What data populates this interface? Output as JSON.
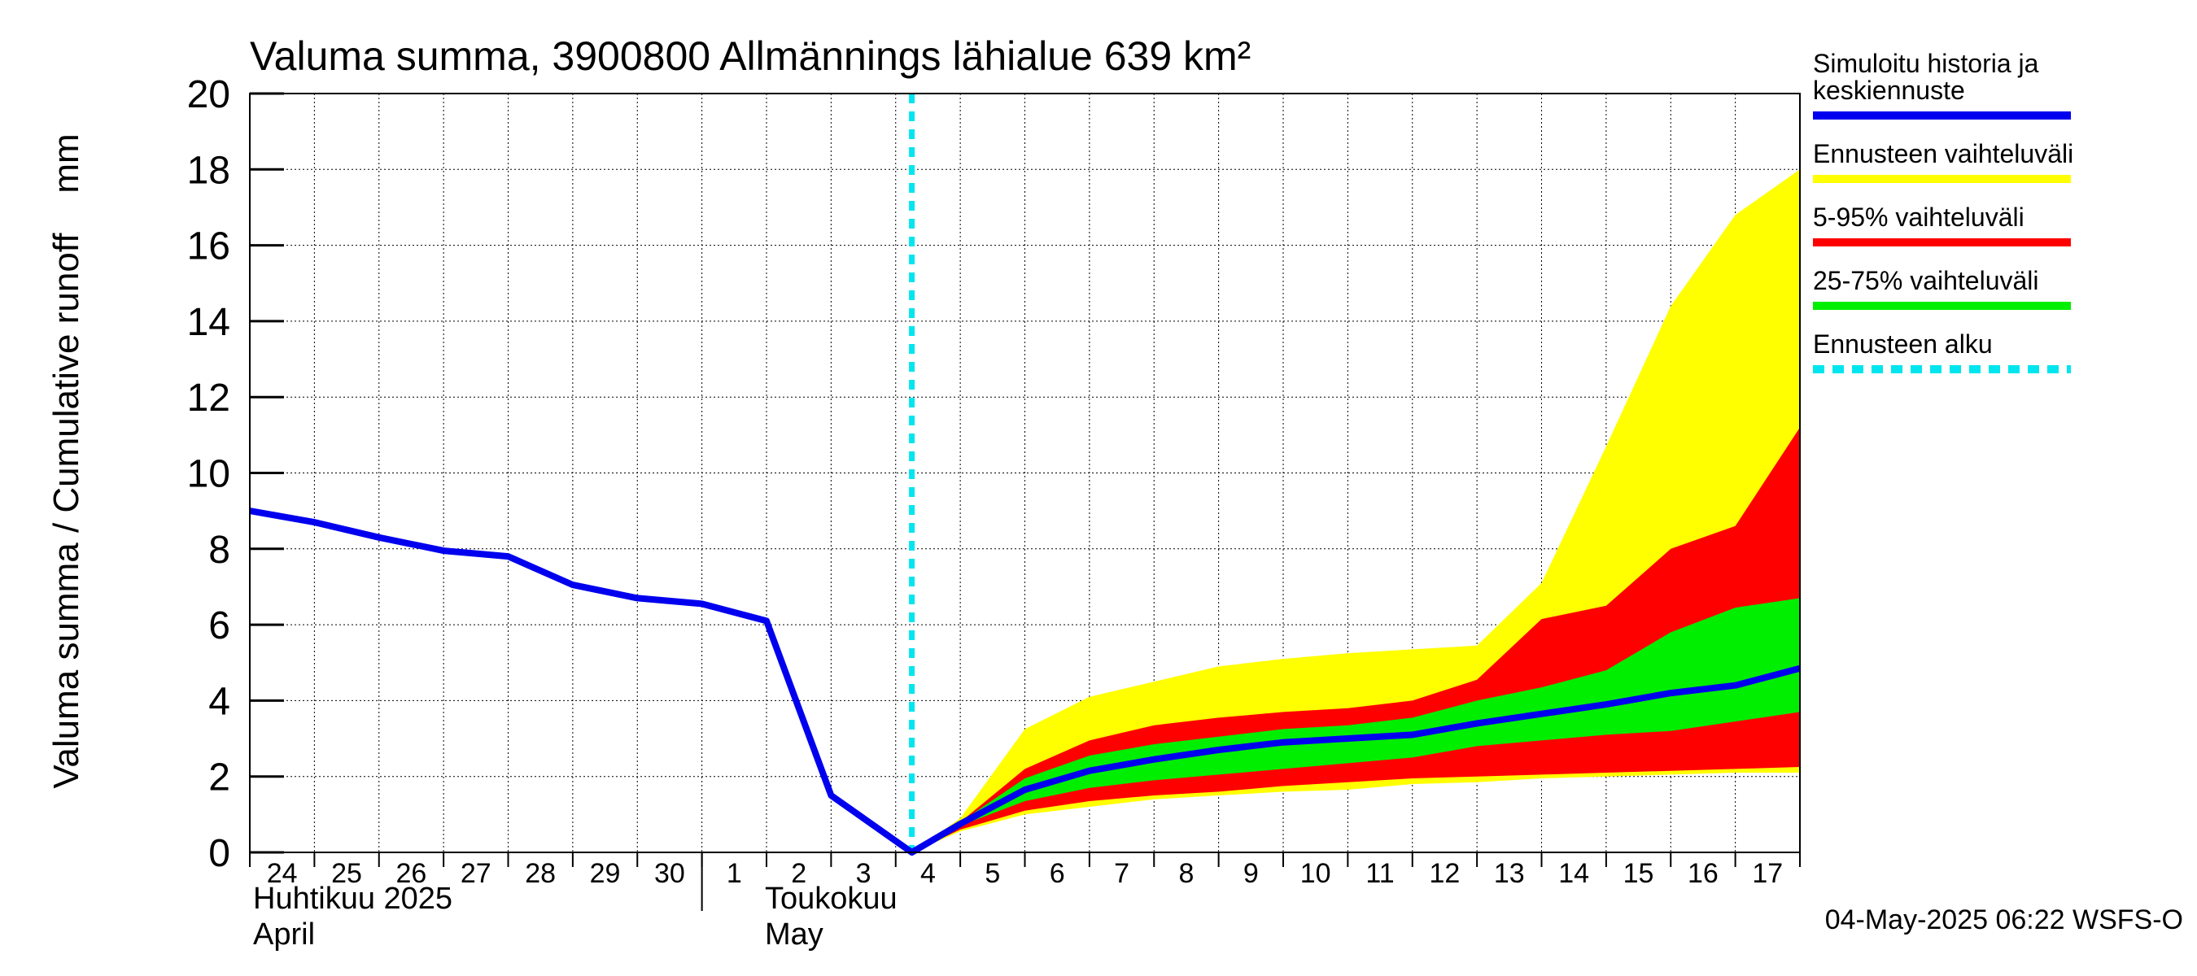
{
  "chart_data": {
    "type": "area",
    "title": "Valuma summa, 3900800 Allmännings lähialue 639 km²",
    "ylabel": "Valuma summa / Cumulative runoff    mm",
    "ylim": [
      0,
      20
    ],
    "yticks": [
      0,
      2,
      4,
      6,
      8,
      10,
      12,
      14,
      16,
      18,
      20
    ],
    "grid": true,
    "legend_position": "right",
    "x_dates": [
      "2025-04-24",
      "2025-04-25",
      "2025-04-26",
      "2025-04-27",
      "2025-04-28",
      "2025-04-29",
      "2025-04-30",
      "2025-05-01",
      "2025-05-02",
      "2025-05-03",
      "2025-05-04",
      "2025-05-05",
      "2025-05-06",
      "2025-05-07",
      "2025-05-08",
      "2025-05-09",
      "2025-05-10",
      "2025-05-11",
      "2025-05-12",
      "2025-05-13",
      "2025-05-14",
      "2025-05-15",
      "2025-05-16",
      "2025-05-17",
      "2025-05-18"
    ],
    "day_labels": [
      "24",
      "25",
      "26",
      "27",
      "28",
      "29",
      "30",
      "1",
      "2",
      "3",
      "4",
      "5",
      "6",
      "7",
      "8",
      "9",
      "10",
      "11",
      "12",
      "13",
      "14",
      "15",
      "16",
      "17"
    ],
    "month_labels": [
      {
        "line1": "Huhtikuu  2025",
        "line2": "April"
      },
      {
        "line1": "Toukokuu",
        "line2": "May"
      }
    ],
    "forecast_start": "2025-05-04 06:00",
    "forecast_x": [
      "2025-05-04 06:00",
      "2025-05-05",
      "2025-05-06",
      "2025-05-07",
      "2025-05-08",
      "2025-05-09",
      "2025-05-10",
      "2025-05-11",
      "2025-05-12",
      "2025-05-13",
      "2025-05-14",
      "2025-05-15",
      "2025-05-16",
      "2025-05-17",
      "2025-05-18"
    ],
    "series": [
      {
        "name": "Simuloitu historia ja keskiennuste",
        "color": "#0000ee",
        "x": [
          "2025-04-24",
          "2025-04-25",
          "2025-04-26",
          "2025-04-27",
          "2025-04-28",
          "2025-04-29",
          "2025-04-30",
          "2025-05-01",
          "2025-05-02",
          "2025-05-03",
          "2025-05-04 06:00",
          "2025-05-05",
          "2025-05-06",
          "2025-05-07",
          "2025-05-08",
          "2025-05-09",
          "2025-05-10",
          "2025-05-11",
          "2025-05-12",
          "2025-05-13",
          "2025-05-14",
          "2025-05-15",
          "2025-05-16",
          "2025-05-17",
          "2025-05-18"
        ],
        "values": [
          9.0,
          8.7,
          8.3,
          7.95,
          7.8,
          7.05,
          6.7,
          6.55,
          6.1,
          1.5,
          0.0,
          0.75,
          1.65,
          2.15,
          2.45,
          2.7,
          2.9,
          3.0,
          3.1,
          3.4,
          3.65,
          3.9,
          4.2,
          4.4,
          4.85
        ]
      },
      {
        "name": "Ennusteen vaihteluväli",
        "color": "#ffff00",
        "upper": [
          0.0,
          0.9,
          3.25,
          4.1,
          4.5,
          4.9,
          5.1,
          5.25,
          5.35,
          5.45,
          7.1,
          10.7,
          14.4,
          16.8,
          18.0
        ],
        "lower": [
          0.0,
          0.55,
          1.0,
          1.2,
          1.4,
          1.5,
          1.6,
          1.65,
          1.8,
          1.85,
          1.95,
          2.0,
          2.05,
          2.1,
          2.1
        ]
      },
      {
        "name": "5-95% vaihteluväli",
        "color": "#ff0000",
        "upper": [
          0.0,
          0.8,
          2.2,
          2.95,
          3.35,
          3.55,
          3.7,
          3.8,
          4.0,
          4.55,
          6.15,
          6.5,
          8.0,
          8.6,
          11.2
        ],
        "lower": [
          0.0,
          0.6,
          1.1,
          1.35,
          1.5,
          1.6,
          1.75,
          1.85,
          1.95,
          2.0,
          2.05,
          2.1,
          2.15,
          2.2,
          2.25
        ]
      },
      {
        "name": "25-75% vaihteluväli",
        "color": "#00ee00",
        "upper": [
          0.0,
          0.8,
          1.95,
          2.55,
          2.85,
          3.05,
          3.25,
          3.35,
          3.55,
          4.0,
          4.35,
          4.8,
          5.8,
          6.45,
          6.7
        ],
        "lower": [
          0.0,
          0.7,
          1.35,
          1.7,
          1.9,
          2.05,
          2.2,
          2.35,
          2.5,
          2.8,
          2.95,
          3.1,
          3.2,
          3.45,
          3.7
        ]
      }
    ],
    "legend": [
      {
        "label": "Simuloitu historia ja keskiennuste",
        "color": "#0000ee",
        "style": "solid"
      },
      {
        "label": "Ennusteen vaihteluväli",
        "color": "#ffff00",
        "style": "solid"
      },
      {
        "label": "5-95% vaihteluväli",
        "color": "#ff0000",
        "style": "solid"
      },
      {
        "label": "25-75% vaihteluväli",
        "color": "#00ee00",
        "style": "solid"
      },
      {
        "label": "Ennusteen alku",
        "color": "#00e5ee",
        "style": "dashed"
      }
    ],
    "footer": "04-May-2025 06:22 WSFS-O"
  }
}
